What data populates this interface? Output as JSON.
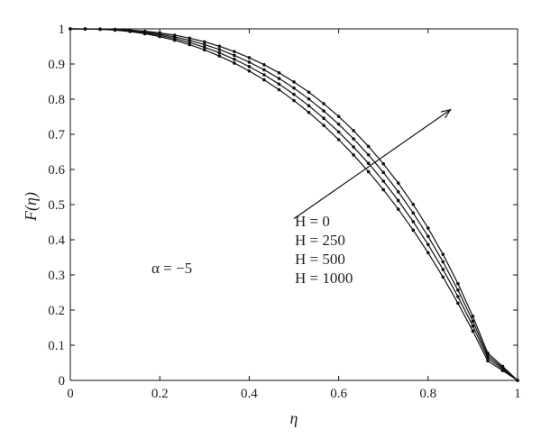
{
  "chart_data": {
    "type": "line",
    "xlabel": "η",
    "ylabel": "F(η)",
    "xlim": [
      0,
      1
    ],
    "ylim": [
      0,
      1
    ],
    "xticks": [
      "0",
      "0.2",
      "0.4",
      "0.6",
      "0.8",
      "1"
    ],
    "yticks": [
      "0",
      "0.1",
      "0.2",
      "0.3",
      "0.4",
      "0.5",
      "0.6",
      "0.7",
      "0.8",
      "0.9",
      "1"
    ],
    "grid": false,
    "line_color": "#111111",
    "annotations": {
      "alpha": "α = −5",
      "legend_lines": [
        "H = 0",
        "H = 250",
        "H = 500",
        "H = 1000"
      ],
      "arrow": {
        "from": [
          0.5,
          0.46
        ],
        "to": [
          0.85,
          0.77
        ]
      }
    },
    "x": [
      0,
      0.0333,
      0.0667,
      0.1,
      0.1333,
      0.1667,
      0.2,
      0.2333,
      0.2667,
      0.3,
      0.3333,
      0.3667,
      0.4,
      0.4333,
      0.4667,
      0.5,
      0.5333,
      0.5667,
      0.6,
      0.6333,
      0.6667,
      0.7,
      0.7333,
      0.7667,
      0.8,
      0.8333,
      0.8667,
      0.9,
      0.9333,
      0.9667,
      1
    ],
    "series": [
      {
        "name": "H = 0",
        "values": [
          1,
          0.9999,
          0.9996,
          0.9985,
          0.9965,
          0.9932,
          0.9884,
          0.982,
          0.9736,
          0.9631,
          0.9505,
          0.9355,
          0.918,
          0.8979,
          0.8749,
          0.8489,
          0.8198,
          0.7871,
          0.7508,
          0.7104,
          0.6656,
          0.6161,
          0.5612,
          0.5005,
          0.4332,
          0.3585,
          0.2753,
          0.1822,
          0.0776,
          0.04,
          0
        ]
      },
      {
        "name": "H = 250",
        "values": [
          1,
          0.9999,
          0.9993,
          0.9978,
          0.9951,
          0.9908,
          0.9849,
          0.9771,
          0.9673,
          0.9554,
          0.9412,
          0.9246,
          0.9054,
          0.8835,
          0.8589,
          0.8313,
          0.8005,
          0.7664,
          0.7287,
          0.6872,
          0.6416,
          0.5915,
          0.5365,
          0.4761,
          0.4099,
          0.3371,
          0.257,
          0.1686,
          0.0707,
          0.036,
          0
        ]
      },
      {
        "name": "H = 500",
        "values": [
          1,
          0.9998,
          0.999,
          0.997,
          0.9936,
          0.9884,
          0.9815,
          0.9724,
          0.9611,
          0.9476,
          0.9318,
          0.9135,
          0.8927,
          0.8692,
          0.8428,
          0.8136,
          0.7812,
          0.7456,
          0.7066,
          0.664,
          0.6175,
          0.5668,
          0.5116,
          0.4516,
          0.3864,
          0.3155,
          0.2384,
          0.1547,
          0.0638,
          0.032,
          0
        ]
      },
      {
        "name": "H = 1000",
        "values": [
          1,
          0.9997,
          0.9987,
          0.9963,
          0.9922,
          0.986,
          0.9779,
          0.9676,
          0.9551,
          0.9401,
          0.9227,
          0.9027,
          0.8801,
          0.8549,
          0.8269,
          0.796,
          0.7622,
          0.7252,
          0.6849,
          0.6411,
          0.5937,
          0.5424,
          0.487,
          0.4273,
          0.363,
          0.2939,
          0.2197,
          0.1401,
          0.0557,
          0.028,
          0
        ]
      }
    ]
  }
}
